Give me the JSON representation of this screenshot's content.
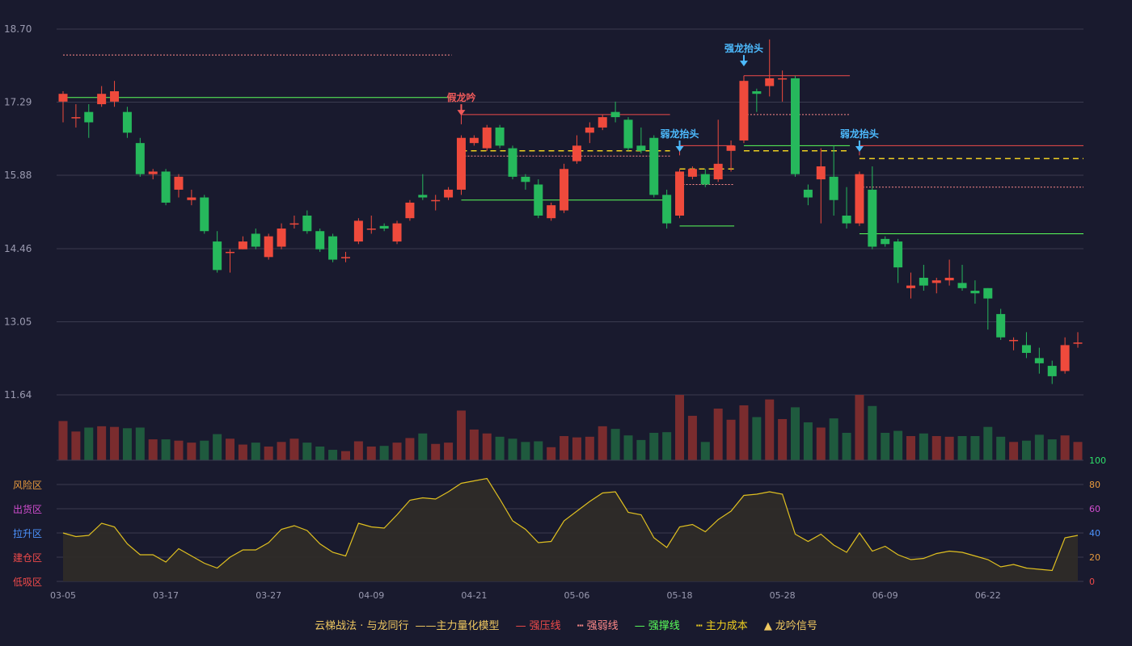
{
  "chart_data": {
    "type": "candlestick",
    "title": "",
    "price_axis": {
      "ticks": [
        "18.70",
        "17.29",
        "15.88",
        "14.46",
        "13.05",
        "11.64"
      ],
      "range": [
        11.64,
        18.7
      ]
    },
    "x_tick_labels": [
      "03-05",
      "03-17",
      "03-27",
      "04-09",
      "04-21",
      "05-06",
      "05-18",
      "05-28",
      "06-09",
      "06-22"
    ],
    "candles": [
      [
        17.3,
        17.45,
        17.5,
        16.9
      ],
      [
        17.0,
        17.0,
        17.25,
        16.8
      ],
      [
        17.1,
        16.9,
        17.25,
        16.6
      ],
      [
        17.25,
        17.45,
        17.6,
        17.2
      ],
      [
        17.3,
        17.5,
        17.7,
        17.2
      ],
      [
        17.1,
        16.7,
        17.2,
        16.6
      ],
      [
        16.5,
        15.9,
        16.6,
        15.85
      ],
      [
        15.9,
        15.95,
        16.0,
        15.8
      ],
      [
        15.95,
        15.35,
        16.0,
        15.3
      ],
      [
        15.6,
        15.85,
        15.9,
        15.45
      ],
      [
        15.4,
        15.45,
        15.6,
        15.3
      ],
      [
        15.45,
        14.8,
        15.5,
        14.75
      ],
      [
        14.6,
        14.05,
        14.8,
        14.0
      ],
      [
        14.4,
        14.4,
        14.45,
        14.0
      ],
      [
        14.45,
        14.6,
        14.7,
        14.45
      ],
      [
        14.75,
        14.5,
        14.85,
        14.45
      ],
      [
        14.3,
        14.7,
        14.75,
        14.25
      ],
      [
        14.5,
        14.85,
        14.95,
        14.45
      ],
      [
        14.95,
        14.95,
        15.1,
        14.85
      ],
      [
        15.1,
        14.8,
        15.2,
        14.75
      ],
      [
        14.8,
        14.45,
        14.85,
        14.4
      ],
      [
        14.7,
        14.25,
        14.75,
        14.2
      ],
      [
        14.3,
        14.3,
        14.4,
        14.2
      ],
      [
        14.6,
        15.0,
        15.05,
        14.55
      ],
      [
        14.85,
        14.85,
        15.1,
        14.75
      ],
      [
        14.9,
        14.85,
        14.95,
        14.8
      ],
      [
        14.6,
        14.95,
        15.0,
        14.55
      ],
      [
        15.05,
        15.35,
        15.4,
        15.0
      ],
      [
        15.5,
        15.45,
        15.9,
        15.4
      ],
      [
        15.4,
        15.4,
        15.5,
        15.2
      ],
      [
        15.45,
        15.6,
        15.65,
        15.4
      ],
      [
        15.6,
        16.6,
        16.65,
        15.5
      ],
      [
        16.5,
        16.6,
        16.65,
        16.45
      ],
      [
        16.4,
        16.8,
        16.85,
        16.35
      ],
      [
        16.8,
        16.45,
        16.85,
        16.4
      ],
      [
        16.4,
        15.85,
        16.45,
        15.8
      ],
      [
        15.85,
        15.75,
        15.9,
        15.6
      ],
      [
        15.7,
        15.1,
        15.8,
        15.05
      ],
      [
        15.05,
        15.3,
        15.35,
        15.0
      ],
      [
        15.2,
        16.0,
        16.1,
        15.15
      ],
      [
        16.15,
        16.45,
        16.65,
        16.1
      ],
      [
        16.7,
        16.8,
        16.9,
        16.5
      ],
      [
        16.8,
        17.0,
        17.05,
        16.75
      ],
      [
        17.1,
        17.0,
        17.3,
        16.9
      ],
      [
        16.95,
        16.4,
        17.0,
        16.35
      ],
      [
        16.45,
        16.35,
        16.8,
        16.3
      ],
      [
        16.6,
        15.5,
        16.65,
        15.45
      ],
      [
        15.5,
        14.95,
        15.6,
        14.85
      ],
      [
        15.1,
        15.95,
        16.0,
        15.05
      ],
      [
        15.85,
        16.0,
        16.05,
        15.8
      ],
      [
        15.9,
        15.7,
        16.0,
        15.65
      ],
      [
        15.8,
        16.1,
        16.95,
        15.75
      ],
      [
        16.35,
        16.45,
        16.55,
        15.95
      ],
      [
        16.55,
        17.7,
        17.75,
        16.5
      ],
      [
        17.5,
        17.45,
        17.55,
        17.1
      ],
      [
        17.6,
        17.75,
        18.5,
        17.4
      ],
      [
        17.75,
        17.75,
        17.9,
        17.3
      ],
      [
        17.75,
        15.9,
        17.8,
        15.85
      ],
      [
        15.6,
        15.45,
        15.7,
        15.3
      ],
      [
        15.8,
        16.05,
        16.4,
        14.95
      ],
      [
        15.85,
        15.4,
        16.45,
        15.1
      ],
      [
        15.1,
        14.95,
        15.65,
        14.85
      ],
      [
        14.95,
        15.9,
        15.95,
        14.9
      ],
      [
        15.6,
        14.5,
        16.05,
        14.45
      ],
      [
        14.65,
        14.55,
        14.7,
        14.5
      ],
      [
        14.6,
        14.1,
        14.65,
        13.8
      ],
      [
        13.7,
        13.75,
        14.0,
        13.5
      ],
      [
        13.9,
        13.75,
        14.15,
        13.65
      ],
      [
        13.8,
        13.85,
        13.9,
        13.6
      ],
      [
        13.85,
        13.9,
        14.25,
        13.75
      ],
      [
        13.8,
        13.7,
        14.15,
        13.65
      ],
      [
        13.65,
        13.6,
        13.85,
        13.4
      ],
      [
        13.7,
        13.5,
        13.7,
        12.9
      ],
      [
        13.2,
        12.75,
        13.3,
        12.7
      ],
      [
        12.7,
        12.7,
        12.75,
        12.5
      ],
      [
        12.6,
        12.45,
        12.85,
        12.35
      ],
      [
        12.35,
        12.25,
        12.55,
        12.05
      ],
      [
        12.2,
        12.0,
        12.3,
        11.85
      ],
      [
        12.1,
        12.6,
        12.75,
        12.05
      ],
      [
        12.65,
        12.65,
        12.85,
        12.55
      ]
    ],
    "volume": [
      60,
      44,
      50,
      52,
      51,
      49,
      50,
      32,
      32,
      30,
      27,
      30,
      40,
      33,
      24,
      27,
      21,
      28,
      33,
      27,
      21,
      16,
      14,
      29,
      21,
      22,
      27,
      34,
      41,
      25,
      27,
      76,
      47,
      41,
      36,
      33,
      28,
      29,
      20,
      37,
      35,
      36,
      52,
      48,
      38,
      31,
      42,
      43,
      100,
      68,
      28,
      79,
      62,
      84,
      66,
      93,
      63,
      81,
      58,
      50,
      64,
      42,
      100,
      83,
      42,
      45,
      37,
      41,
      37,
      36,
      37,
      37,
      51,
      36,
      28,
      30,
      39,
      32,
      38,
      28
    ],
    "upper_series": [
      40,
      37,
      38,
      48,
      45,
      31,
      22,
      22,
      16,
      27,
      21,
      15,
      11,
      20,
      26,
      26,
      32,
      43,
      46,
      42,
      31,
      24,
      21,
      48,
      45,
      44,
      55,
      67,
      69,
      68,
      74,
      81,
      83,
      85,
      68,
      50,
      43,
      32,
      33,
      50,
      58,
      66,
      73,
      74,
      57,
      55,
      36,
      28,
      45,
      47,
      41,
      51,
      58,
      71,
      72,
      74,
      72,
      39,
      33,
      39,
      30,
      24,
      40,
      25,
      29,
      22,
      18,
      19,
      23,
      25,
      24,
      21,
      18,
      12,
      14,
      11,
      10,
      9,
      36,
      38
    ],
    "oscillator_zones": [
      "风险区",
      "出货区",
      "拉升区",
      "建仓区",
      "低吸区"
    ],
    "oscillator_zone_colors": [
      "#e89a3c",
      "#d24dd0",
      "#4d94ff",
      "#ef4a4a",
      "#ef4a4a"
    ],
    "oscillator_ticks": [
      "100",
      "80",
      "60",
      "40",
      "20",
      "0"
    ],
    "oscillator_tick_colors": [
      "#2ee06a",
      "#e89a3c",
      "#d24dd0",
      "#4d94ff",
      "#e89a3c",
      "#ef4a4a"
    ],
    "signals": [
      {
        "label": "假龙吟",
        "index": 31,
        "price": 17.0,
        "color": "#ef5a5a",
        "arrow": "down"
      },
      {
        "label": "弱龙抬头",
        "index": 48,
        "price": 16.3,
        "color": "#4dbbff",
        "arrow": "down"
      },
      {
        "label": "强龙抬头",
        "index": 53,
        "price": 17.95,
        "color": "#4dbbff",
        "arrow": "down"
      },
      {
        "label": "弱龙抬头",
        "index": 62,
        "price": 16.3,
        "color": "#4dbbff",
        "arrow": "down"
      }
    ],
    "levels": [
      {
        "kind": "weak",
        "from": 0,
        "to": 30,
        "price": 18.2
      },
      {
        "kind": "support",
        "from": 0,
        "to": 30,
        "price": 17.38
      },
      {
        "kind": "pressure",
        "from": 31,
        "to": 47,
        "price": 17.05
      },
      {
        "kind": "cost",
        "from": 31,
        "to": 47,
        "price": 16.35
      },
      {
        "kind": "weak",
        "from": 31,
        "to": 47,
        "price": 16.25
      },
      {
        "kind": "support",
        "from": 31,
        "to": 47,
        "price": 15.4
      },
      {
        "kind": "pressure",
        "from": 48,
        "to": 52,
        "price": 16.45
      },
      {
        "kind": "cost",
        "from": 48,
        "to": 52,
        "price": 16.0
      },
      {
        "kind": "weak",
        "from": 48,
        "to": 52,
        "price": 15.7
      },
      {
        "kind": "support",
        "from": 48,
        "to": 52,
        "price": 14.9
      },
      {
        "kind": "pressure",
        "from": 53,
        "to": 61,
        "price": 17.8
      },
      {
        "kind": "weak",
        "from": 53,
        "to": 61,
        "price": 17.05
      },
      {
        "kind": "support",
        "from": 53,
        "to": 61,
        "price": 16.45
      },
      {
        "kind": "cost",
        "from": 53,
        "to": 61,
        "price": 16.35
      },
      {
        "kind": "pressure",
        "from": 62,
        "to": 79,
        "price": 16.45
      },
      {
        "kind": "cost",
        "from": 62,
        "to": 79,
        "price": 16.2
      },
      {
        "kind": "weak",
        "from": 62,
        "to": 79,
        "price": 15.65
      },
      {
        "kind": "support",
        "from": 62,
        "to": 79,
        "price": 14.75
      }
    ],
    "colors": {
      "up": "#ef4a3c",
      "down": "#26b85c",
      "up_vol": "#7a2c2e",
      "down_vol": "#1f5a3e",
      "grid": "#3a3b4f",
      "axis_text": "#9a9ab0",
      "pressure": "#ef4a4a",
      "weak": "#ff8a8a",
      "support": "#5aff5a",
      "cost": "#f0d020",
      "osc_line": "#e0c020",
      "osc_fill": "#2e2b28"
    }
  },
  "legend": {
    "brand": "云梯战法 · 与龙同行",
    "model_line": "——",
    "model": "主力量化模型",
    "pressure_mark": "—",
    "pressure": "强压线",
    "weak_mark": "┅",
    "weak": "强弱线",
    "support_mark": "—",
    "support": "强撑线",
    "cost_mark": "┅",
    "cost": "主力成本",
    "signal_mark": "▲",
    "signal": "龙吟信号"
  }
}
